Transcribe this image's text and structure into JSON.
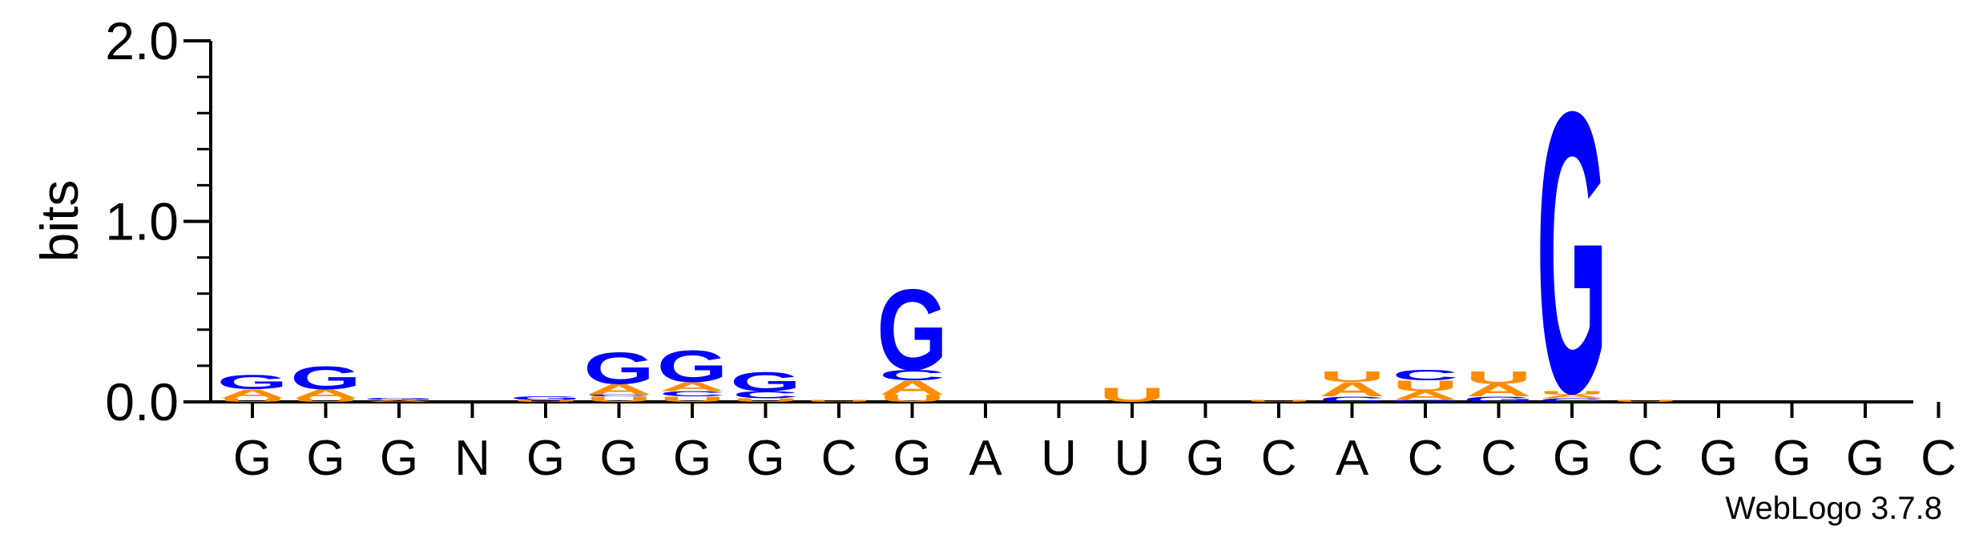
{
  "chart_data": {
    "type": "sequence-logo",
    "ylabel": "bits",
    "ylim": [
      0,
      2.0
    ],
    "yticks": [
      {
        "value": 0.0,
        "label": "0.0"
      },
      {
        "value": 1.0,
        "label": "1.0"
      },
      {
        "value": 2.0,
        "label": "2.0"
      }
    ],
    "positions": [
      {
        "label": "G",
        "stack": [
          {
            "letter": "U",
            "bits": 0.02
          },
          {
            "letter": "A",
            "bits": 0.05
          },
          {
            "letter": "G",
            "bits": 0.08
          }
        ]
      },
      {
        "label": "G",
        "stack": [
          {
            "letter": "U",
            "bits": 0.02
          },
          {
            "letter": "A",
            "bits": 0.05
          },
          {
            "letter": "G",
            "bits": 0.13
          }
        ]
      },
      {
        "label": "G",
        "stack": [
          {
            "letter": "A",
            "bits": 0.01
          },
          {
            "letter": "G",
            "bits": 0.01
          }
        ]
      },
      {
        "label": "N",
        "stack": []
      },
      {
        "label": "G",
        "stack": [
          {
            "letter": "U",
            "bits": 0.01
          },
          {
            "letter": "G",
            "bits": 0.02
          }
        ]
      },
      {
        "label": "G",
        "stack": [
          {
            "letter": "U",
            "bits": 0.03
          },
          {
            "letter": "C",
            "bits": 0.01
          },
          {
            "letter": "A",
            "bits": 0.06
          },
          {
            "letter": "G",
            "bits": 0.18
          }
        ]
      },
      {
        "label": "G",
        "stack": [
          {
            "letter": "U",
            "bits": 0.03
          },
          {
            "letter": "C",
            "bits": 0.03
          },
          {
            "letter": "A",
            "bits": 0.05
          },
          {
            "letter": "G",
            "bits": 0.18
          }
        ]
      },
      {
        "label": "G",
        "stack": [
          {
            "letter": "U",
            "bits": 0.02
          },
          {
            "letter": "C",
            "bits": 0.04
          },
          {
            "letter": "G",
            "bits": 0.11
          }
        ]
      },
      {
        "label": "C",
        "stack": [
          {
            "letter": "U",
            "bits": 0.01
          }
        ]
      },
      {
        "label": "G",
        "stack": [
          {
            "letter": "U",
            "bits": 0.04
          },
          {
            "letter": "A",
            "bits": 0.08
          },
          {
            "letter": "C",
            "bits": 0.06
          },
          {
            "letter": "G",
            "bits": 0.46
          }
        ]
      },
      {
        "label": "A",
        "stack": []
      },
      {
        "label": "U",
        "stack": []
      },
      {
        "label": "U",
        "stack": [
          {
            "letter": "U",
            "bits": 0.08
          }
        ]
      },
      {
        "label": "G",
        "stack": []
      },
      {
        "label": "C",
        "stack": [
          {
            "letter": "U",
            "bits": 0.01
          }
        ]
      },
      {
        "label": "A",
        "stack": [
          {
            "letter": "C",
            "bits": 0.03
          },
          {
            "letter": "A",
            "bits": 0.08
          },
          {
            "letter": "U",
            "bits": 0.06
          }
        ]
      },
      {
        "label": "C",
        "stack": [
          {
            "letter": "G",
            "bits": 0.01
          },
          {
            "letter": "A",
            "bits": 0.05
          },
          {
            "letter": "U",
            "bits": 0.06
          },
          {
            "letter": "C",
            "bits": 0.06
          }
        ]
      },
      {
        "label": "C",
        "stack": [
          {
            "letter": "G",
            "bits": 0.03
          },
          {
            "letter": "A",
            "bits": 0.07
          },
          {
            "letter": "U",
            "bits": 0.07
          }
        ]
      },
      {
        "label": "G",
        "stack": [
          {
            "letter": "C",
            "bits": 0.02
          },
          {
            "letter": "A",
            "bits": 0.02
          },
          {
            "letter": "U",
            "bits": 0.02
          },
          {
            "letter": "G",
            "bits": 1.6
          }
        ]
      },
      {
        "label": "C",
        "stack": [
          {
            "letter": "U",
            "bits": 0.01
          }
        ]
      },
      {
        "label": "G",
        "stack": []
      },
      {
        "label": "G",
        "stack": []
      },
      {
        "label": "G",
        "stack": []
      },
      {
        "label": "C",
        "stack": []
      }
    ],
    "colors": {
      "G": "#0000ff",
      "C": "#0000ff",
      "A": "#ff8c00",
      "U": "#ff8c00"
    }
  },
  "footer": {
    "credit": "WebLogo 3.7.8"
  }
}
